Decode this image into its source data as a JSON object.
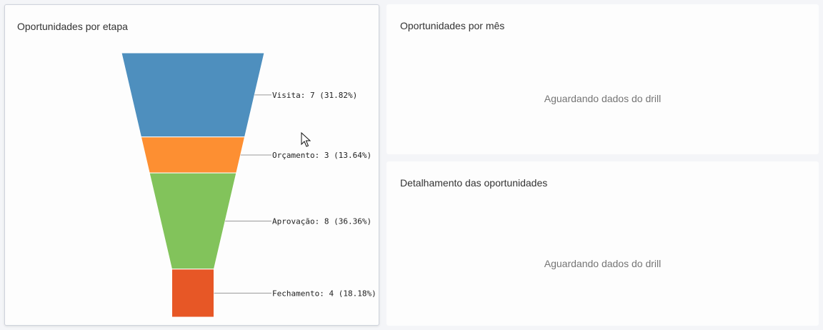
{
  "panels": {
    "funnel": {
      "title": "Oportunidades por etapa"
    },
    "month": {
      "title": "Oportunidades por mês",
      "placeholder": "Aguardando dados do drill"
    },
    "detail": {
      "title": "Detalhamento das oportunidades",
      "placeholder": "Aguardando dados do drill"
    }
  },
  "chart_data": {
    "type": "funnel",
    "title": "Oportunidades por etapa",
    "stages": [
      {
        "label": "Visita",
        "value": 7,
        "percent": "31.82%",
        "text": "Visita: 7 (31.82%)",
        "color": "#4e8fbe"
      },
      {
        "label": "Orçamento",
        "value": 3,
        "percent": "13.64%",
        "text": "Orçamento: 3 (13.64%)",
        "color": "#fd8f32"
      },
      {
        "label": "Aprovação",
        "value": 8,
        "percent": "36.36%",
        "text": "Aprovação: 8 (36.36%)",
        "color": "#82c35b"
      },
      {
        "label": "Fechamento",
        "value": 4,
        "percent": "18.18%",
        "text": "Fechamento: 4 (18.18%)",
        "color": "#e75726"
      }
    ]
  }
}
